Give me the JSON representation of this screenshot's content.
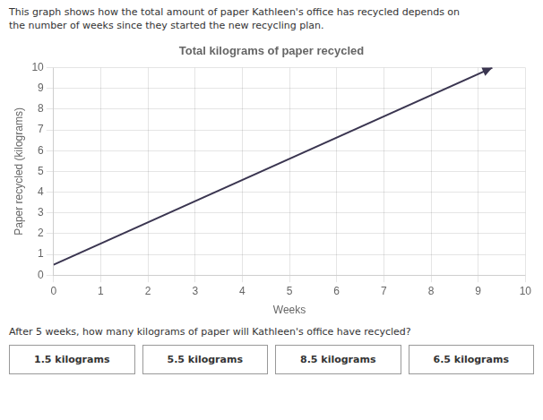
{
  "chart_data": {
    "type": "line",
    "title": "Total kilograms of paper recycled",
    "subtitle": "This graph shows how the total amount of paper Kathleen's office has recycled depends on\nthe number of weeks since they started the new recycling plan.",
    "x_label": "Weeks",
    "y_label": "Paper recycled (kilograms)",
    "x": [
      0,
      9.3
    ],
    "values": [
      0.5,
      10.0
    ],
    "color": "#3a3550",
    "xlim": [
      0,
      10
    ],
    "ylim": [
      0,
      10
    ],
    "xticks": [
      0,
      1,
      2,
      3,
      4,
      5,
      6,
      7,
      8,
      9,
      10
    ],
    "yticks": [
      0,
      1,
      2,
      3,
      4,
      5,
      6,
      7,
      8,
      9,
      10
    ],
    "grid": true,
    "annotations": [
      "After 5 weeks, how many kilograms of paper will Kathleen's office have recycled?",
      "1.5 kilograms",
      "5.5 kilograms",
      "8.5 kilograms",
      "6.5 kilograms"
    ]
  }
}
